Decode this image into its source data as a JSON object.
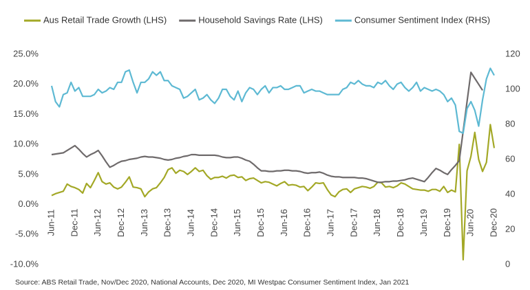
{
  "chart_data": {
    "type": "line",
    "source": "Source: ABS Retail Trade, Nov/Dec 2020, National Accounts, Dec 2020, MI Westpac Consumer Sentiment Index, Jan 2021",
    "categories": [
      "Jun-11",
      null,
      null,
      null,
      null,
      null,
      "Dec-11",
      null,
      null,
      null,
      null,
      null,
      "Jun-12",
      null,
      null,
      null,
      null,
      null,
      "Dec-12",
      null,
      null,
      null,
      null,
      null,
      "Jun-13",
      null,
      null,
      null,
      null,
      null,
      "Dec-13",
      null,
      null,
      null,
      null,
      null,
      "Jun-14",
      null,
      null,
      null,
      null,
      null,
      "Dec-14",
      null,
      null,
      null,
      null,
      null,
      "Jun-15",
      null,
      null,
      null,
      null,
      null,
      "Dec-15",
      null,
      null,
      null,
      null,
      null,
      "Jun-16",
      null,
      null,
      null,
      null,
      null,
      "Dec-16",
      null,
      null,
      null,
      null,
      null,
      "Jun-17",
      null,
      null,
      null,
      null,
      null,
      "Dec-17",
      null,
      null,
      null,
      null,
      null,
      "Jun-18",
      null,
      null,
      null,
      null,
      null,
      "Dec-18",
      null,
      null,
      null,
      null,
      null,
      "Jun-19",
      null,
      null,
      null,
      null,
      null,
      "Dec-19",
      null,
      null,
      null,
      null,
      null,
      "Jun-20",
      null,
      null,
      null,
      null,
      null,
      "Dec-20"
    ],
    "series": [
      {
        "name": "Aus Retail Trade Growth (LHS)",
        "color": "#a3a826",
        "axis": "y",
        "values": [
          1.5,
          1.8,
          2.0,
          2.2,
          3.4,
          3.0,
          2.8,
          2.5,
          1.9,
          3.5,
          2.8,
          4.0,
          5.3,
          3.8,
          3.4,
          3.6,
          2.9,
          2.6,
          2.9,
          3.7,
          4.6,
          2.9,
          2.8,
          2.6,
          1.3,
          2.1,
          2.6,
          2.8,
          3.6,
          4.5,
          5.8,
          6.1,
          5.2,
          5.7,
          5.5,
          5.0,
          5.5,
          6.1,
          5.5,
          5.7,
          4.8,
          4.2,
          4.5,
          4.5,
          4.7,
          4.4,
          4.8,
          4.9,
          4.5,
          4.6,
          4.0,
          4.3,
          4.4,
          4.0,
          3.6,
          3.8,
          3.7,
          3.4,
          3.1,
          3.5,
          3.8,
          3.2,
          3.3,
          3.2,
          2.9,
          3.0,
          2.3,
          2.9,
          3.6,
          3.5,
          3.6,
          2.5,
          1.6,
          1.3,
          2.1,
          2.5,
          2.6,
          2.0,
          2.6,
          2.8,
          3.0,
          2.9,
          2.7,
          3.0,
          3.7,
          3.6,
          2.9,
          3.0,
          2.8,
          3.1,
          3.6,
          3.4,
          3.0,
          2.6,
          2.5,
          2.4,
          2.4,
          2.2,
          2.5,
          2.5,
          2.2,
          3.0,
          2.0,
          2.4,
          2.1,
          10.0,
          -9.2,
          5.6,
          8.0,
          12.0,
          7.5,
          5.5,
          7.0,
          13.3,
          9.4
        ]
      },
      {
        "name": "Household Savings Rate (LHS)",
        "color": "#6e6a6b",
        "axis": "y",
        "values": [
          8.3,
          8.4,
          8.5,
          8.6,
          9.0,
          9.4,
          9.8,
          9.2,
          8.5,
          7.9,
          8.3,
          8.6,
          9.0,
          8.1,
          7.1,
          6.2,
          6.5,
          6.9,
          7.2,
          7.3,
          7.5,
          7.6,
          7.7,
          7.9,
          8.0,
          7.9,
          7.9,
          7.8,
          7.7,
          7.5,
          7.4,
          7.5,
          7.7,
          7.8,
          8.0,
          8.1,
          8.3,
          8.3,
          8.2,
          8.2,
          8.2,
          8.2,
          8.2,
          8.1,
          7.9,
          7.8,
          7.8,
          7.9,
          7.9,
          7.7,
          7.4,
          7.2,
          6.7,
          6.1,
          5.6,
          5.6,
          5.5,
          5.5,
          5.6,
          5.6,
          5.7,
          5.7,
          5.6,
          5.6,
          5.5,
          5.3,
          5.2,
          5.3,
          5.3,
          5.4,
          5.2,
          4.9,
          4.7,
          4.6,
          4.6,
          4.5,
          4.5,
          4.5,
          4.5,
          4.4,
          4.4,
          4.3,
          4.1,
          3.9,
          3.7,
          3.7,
          3.8,
          3.8,
          3.9,
          3.9,
          4.0,
          4.1,
          4.3,
          4.4,
          4.2,
          4.0,
          3.8,
          4.5,
          5.3,
          6.0,
          5.7,
          5.3,
          5.0,
          5.8,
          6.5,
          7.3,
          12.2,
          17.1,
          22.0,
          21.0,
          20.0,
          19.0,
          null,
          null,
          null
        ]
      },
      {
        "name": "Consumer Sentiment Index (RHS)",
        "color": "#5db9d3",
        "axis": "y2",
        "values": [
          102,
          93,
          90,
          97,
          98,
          104,
          99,
          101,
          96,
          96,
          96,
          97,
          100,
          98,
          99,
          101,
          100,
          104,
          104,
          110,
          111,
          104,
          98,
          104,
          104,
          106,
          110,
          108,
          110,
          105,
          105,
          102,
          101,
          100,
          95,
          96,
          98,
          100,
          94,
          95,
          97,
          94,
          92,
          95,
          100,
          100,
          96,
          94,
          99,
          93,
          98,
          101,
          100,
          97,
          100,
          102,
          98,
          101,
          101,
          102,
          100,
          100,
          101,
          102,
          102,
          98,
          99,
          100,
          99,
          99,
          98,
          97,
          97,
          97,
          97,
          100,
          101,
          104,
          103,
          105,
          103,
          102,
          102,
          101,
          104,
          103,
          105,
          102,
          100,
          103,
          104,
          101,
          99,
          101,
          104,
          99,
          101,
          100,
          99,
          100,
          99,
          97,
          93,
          95,
          91,
          76,
          75,
          89,
          93,
          88,
          79,
          94,
          106,
          112,
          108
        ]
      }
    ],
    "ylim": [
      -10,
      25
    ],
    "yticks": [
      {
        "value": -10,
        "label": "-10.0%"
      },
      {
        "value": -5,
        "label": "-5.0%"
      },
      {
        "value": 0,
        "label": "0.0%"
      },
      {
        "value": 5,
        "label": "5.0%"
      },
      {
        "value": 10,
        "label": "10.0%"
      },
      {
        "value": 15,
        "label": "15.0%"
      },
      {
        "value": 20,
        "label": "20.0%"
      },
      {
        "value": 25,
        "label": "25.0%"
      }
    ],
    "y2lim": [
      0,
      120
    ],
    "y2ticks": [
      0,
      20,
      40,
      60,
      80,
      100,
      120
    ],
    "grid": false,
    "legend": "top"
  }
}
